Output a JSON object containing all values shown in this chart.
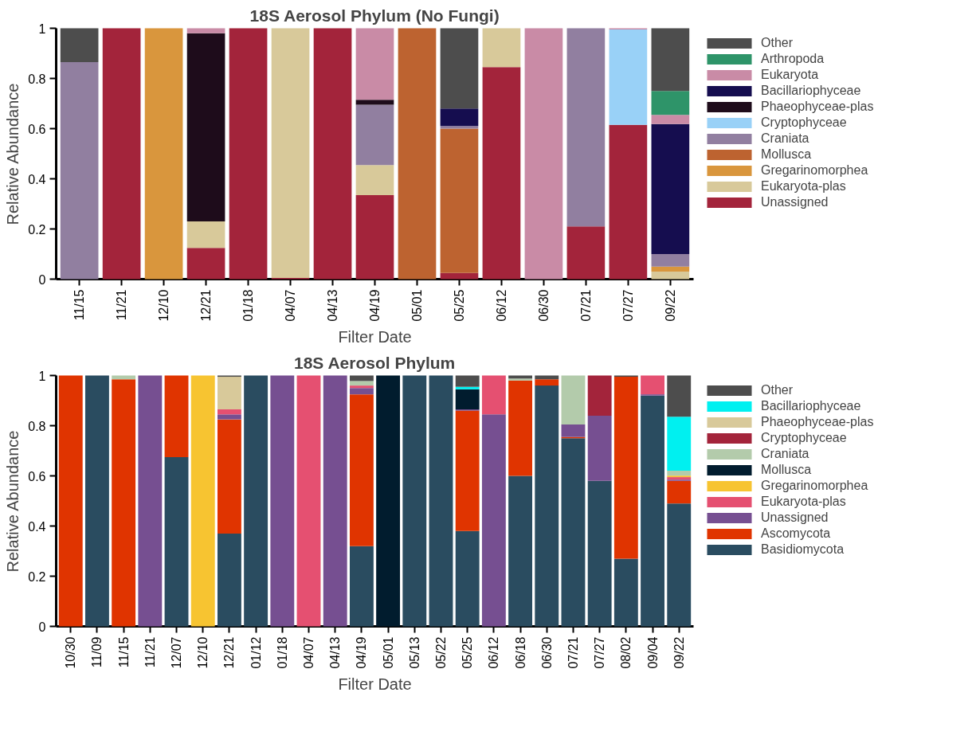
{
  "chart_data": [
    {
      "type": "bar",
      "stacked": true,
      "title": "18S Aerosol Phylum (No Fungi)",
      "xlabel": "Filter Date",
      "ylabel": "Relative Abundance",
      "legend": "right",
      "grid": false,
      "categories": [
        "11/15",
        "11/21",
        "12/10",
        "12/21",
        "01/18",
        "04/07",
        "04/13",
        "04/19",
        "05/01",
        "05/25",
        "06/12",
        "06/30",
        "07/21",
        "07/27",
        "09/22"
      ],
      "ylim": [
        0,
        1
      ],
      "yticks": [
        0,
        0.2,
        0.4,
        0.6,
        0.8,
        1
      ],
      "series": [
        {
          "name": "Unassigned",
          "color": "#a3243b",
          "values": [
            0,
            1,
            0,
            0.125,
            1,
            0.005,
            1,
            0.335,
            0,
            0.025,
            0.845,
            0,
            0.21,
            0.615,
            0
          ]
        },
        {
          "name": "Eukaryota-plas",
          "color": "#d8c99a",
          "values": [
            0,
            0,
            0,
            0.105,
            0,
            0.995,
            0,
            0.12,
            0,
            0,
            0.155,
            0,
            0,
            0,
            0.03
          ]
        },
        {
          "name": "Gregarinomorphea",
          "color": "#d9963d",
          "values": [
            0,
            0,
            1,
            0,
            0,
            0,
            0,
            0,
            0,
            0,
            0,
            0,
            0,
            0,
            0.02
          ]
        },
        {
          "name": "Mollusca",
          "color": "#bd6330",
          "values": [
            0,
            0,
            0,
            0,
            0,
            0,
            0,
            0,
            1,
            0.575,
            0,
            0,
            0,
            0,
            0
          ]
        },
        {
          "name": "Craniata",
          "color": "#917fa0",
          "values": [
            0.865,
            0,
            0,
            0,
            0,
            0,
            0,
            0.24,
            0,
            0.01,
            0,
            0,
            0.79,
            0,
            0.05
          ]
        },
        {
          "name": "Cryptophyceae",
          "color": "#99d1f7",
          "values": [
            0,
            0,
            0,
            0,
            0,
            0,
            0,
            0,
            0,
            0,
            0,
            0,
            0,
            0.38,
            0
          ]
        },
        {
          "name": "Phaeophyceae-plas",
          "color": "#1e0c1b",
          "values": [
            0,
            0,
            0,
            0.75,
            0,
            0,
            0,
            0.02,
            0,
            0,
            0,
            0,
            0,
            0,
            0
          ]
        },
        {
          "name": "Bacillariophyceae",
          "color": "#150d4f",
          "values": [
            0,
            0,
            0,
            0,
            0,
            0,
            0,
            0,
            0,
            0.07,
            0,
            0,
            0,
            0,
            0.518
          ]
        },
        {
          "name": "Eukaryota",
          "color": "#c98ba6",
          "values": [
            0,
            0,
            0,
            0.02,
            0,
            0,
            0,
            0.285,
            0,
            0,
            0,
            1,
            0,
            0.005,
            0.037
          ]
        },
        {
          "name": "Arthropoda",
          "color": "#2e9469",
          "values": [
            0,
            0,
            0,
            0,
            0,
            0,
            0,
            0,
            0,
            0,
            0,
            0,
            0,
            0,
            0.095
          ]
        },
        {
          "name": "Other",
          "color": "#4d4d4d",
          "values": [
            0.135,
            0,
            0,
            0,
            0,
            0,
            0,
            0,
            0,
            0.32,
            0,
            0,
            0,
            0,
            0.25
          ]
        }
      ]
    },
    {
      "type": "bar",
      "stacked": true,
      "title": "18S Aerosol Phylum",
      "xlabel": "Filter Date",
      "ylabel": "Relative Abundance",
      "legend": "right",
      "grid": false,
      "categories": [
        "10/30",
        "11/09",
        "11/15",
        "11/21",
        "12/07",
        "12/10",
        "12/21",
        "01/12",
        "01/18",
        "04/07",
        "04/13",
        "04/19",
        "05/01",
        "05/13",
        "05/22",
        "05/25",
        "06/12",
        "06/18",
        "06/30",
        "07/21",
        "07/27",
        "08/02",
        "09/04",
        "09/22"
      ],
      "ylim": [
        0,
        1
      ],
      "yticks": [
        0,
        0.2,
        0.4,
        0.6,
        0.8,
        1
      ],
      "series": [
        {
          "name": "Basidiomycota",
          "color": "#2a4c60",
          "values": [
            0,
            1,
            0,
            0,
            0.675,
            0,
            0.37,
            1,
            0,
            0,
            0,
            0.32,
            0,
            1,
            1,
            0.38,
            0,
            0.6,
            0.96,
            0.75,
            0.58,
            0.27,
            0.92,
            0.49
          ]
        },
        {
          "name": "Ascomycota",
          "color": "#e03400",
          "values": [
            1,
            0,
            0.985,
            0,
            0.325,
            0,
            0.455,
            0,
            0,
            0,
            0,
            0.605,
            0,
            0,
            0,
            0.48,
            0,
            0.38,
            0.025,
            0.005,
            0,
            0.725,
            0,
            0.09
          ]
        },
        {
          "name": "Unassigned",
          "color": "#764f91",
          "values": [
            0,
            0,
            0,
            1,
            0,
            0,
            0.02,
            0,
            1,
            0,
            1,
            0.025,
            0,
            0,
            0,
            0.005,
            0.845,
            0,
            0,
            0.05,
            0.26,
            0,
            0.005,
            0.005
          ]
        },
        {
          "name": "Eukaryota-plas",
          "color": "#e55071",
          "values": [
            0,
            0,
            0,
            0,
            0,
            0,
            0.02,
            0,
            0,
            1,
            0,
            0.01,
            0,
            0,
            0,
            0,
            0.155,
            0,
            0,
            0,
            0,
            0,
            0.075,
            0.01
          ]
        },
        {
          "name": "Gregarinomorphea",
          "color": "#f7c431",
          "values": [
            0,
            0,
            0,
            0,
            0,
            1,
            0,
            0,
            0,
            0,
            0,
            0,
            0,
            0,
            0,
            0,
            0,
            0,
            0,
            0,
            0,
            0,
            0,
            0.006
          ]
        },
        {
          "name": "Mollusca",
          "color": "#011c2e",
          "values": [
            0,
            0,
            0,
            0,
            0,
            0,
            0,
            0,
            0,
            0,
            0,
            0,
            1,
            0,
            0,
            0.08,
            0,
            0,
            0,
            0,
            0,
            0,
            0,
            0
          ]
        },
        {
          "name": "Craniata",
          "color": "#b3cbab",
          "values": [
            0,
            0,
            0.015,
            0,
            0,
            0,
            0,
            0,
            0,
            0,
            0,
            0.018,
            0,
            0,
            0,
            0,
            0,
            0.008,
            0,
            0.195,
            0,
            0,
            0,
            0.02
          ]
        },
        {
          "name": "Cryptophyceae",
          "color": "#a3243b",
          "values": [
            0,
            0,
            0,
            0,
            0,
            0,
            0,
            0,
            0,
            0,
            0,
            0,
            0,
            0,
            0,
            0,
            0,
            0,
            0,
            0,
            0.16,
            0,
            0,
            0
          ]
        },
        {
          "name": "Phaeophyceae-plas",
          "color": "#d8c99a",
          "values": [
            0,
            0,
            0,
            0,
            0,
            0,
            0.13,
            0,
            0,
            0,
            0,
            0,
            0,
            0,
            0,
            0,
            0,
            0,
            0,
            0,
            0,
            0,
            0,
            0
          ]
        },
        {
          "name": "Bacillariophyceae",
          "color": "#00f0f0",
          "values": [
            0,
            0,
            0,
            0,
            0,
            0,
            0,
            0,
            0,
            0,
            0,
            0,
            0,
            0,
            0,
            0.01,
            0,
            0,
            0,
            0,
            0,
            0,
            0,
            0.215
          ]
        },
        {
          "name": "Other",
          "color": "#4d4d4d",
          "values": [
            0,
            0,
            0,
            0,
            0,
            0,
            0.005,
            0,
            0,
            0,
            0,
            0.022,
            0,
            0,
            0,
            0.045,
            0,
            0.012,
            0.015,
            0,
            0,
            0.005,
            0,
            0.164
          ]
        }
      ]
    }
  ]
}
